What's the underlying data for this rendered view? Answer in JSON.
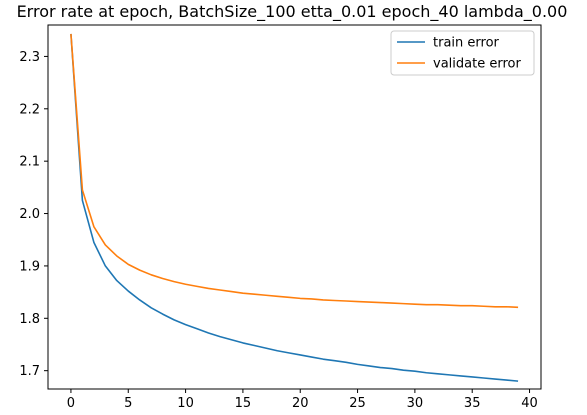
{
  "chart_data": {
    "type": "line",
    "title": "Error rate at epoch, BatchSize_100  etta_0.01 epoch_40 lambda_0.00",
    "xlabel": "",
    "ylabel": "",
    "xlim": [
      -2,
      41
    ],
    "ylim": [
      1.665,
      2.36
    ],
    "x_ticks": [
      0,
      5,
      10,
      15,
      20,
      25,
      30,
      35,
      40
    ],
    "y_ticks": [
      1.7,
      1.8,
      1.9,
      2.0,
      2.1,
      2.2,
      2.3
    ],
    "grid": false,
    "legend_position": "top-right",
    "x": [
      0,
      1,
      2,
      3,
      4,
      5,
      6,
      7,
      8,
      9,
      10,
      11,
      12,
      13,
      14,
      15,
      16,
      17,
      18,
      19,
      20,
      21,
      22,
      23,
      24,
      25,
      26,
      27,
      28,
      29,
      30,
      31,
      32,
      33,
      34,
      35,
      36,
      37,
      38,
      39
    ],
    "series": [
      {
        "name": "train error",
        "color": "#1f77b4",
        "values": [
          2.343,
          2.025,
          1.945,
          1.9,
          1.872,
          1.852,
          1.835,
          1.82,
          1.808,
          1.797,
          1.788,
          1.78,
          1.772,
          1.765,
          1.759,
          1.753,
          1.748,
          1.743,
          1.738,
          1.734,
          1.73,
          1.726,
          1.722,
          1.719,
          1.716,
          1.712,
          1.709,
          1.706,
          1.704,
          1.701,
          1.699,
          1.696,
          1.694,
          1.692,
          1.69,
          1.688,
          1.686,
          1.684,
          1.682,
          1.68
        ]
      },
      {
        "name": "validate error",
        "color": "#ff7f0e",
        "values": [
          2.343,
          2.045,
          1.975,
          1.94,
          1.919,
          1.903,
          1.892,
          1.883,
          1.876,
          1.87,
          1.865,
          1.861,
          1.857,
          1.854,
          1.851,
          1.848,
          1.846,
          1.844,
          1.842,
          1.84,
          1.838,
          1.837,
          1.835,
          1.834,
          1.833,
          1.832,
          1.831,
          1.83,
          1.829,
          1.828,
          1.827,
          1.826,
          1.826,
          1.825,
          1.824,
          1.824,
          1.823,
          1.822,
          1.822,
          1.821
        ]
      }
    ]
  }
}
